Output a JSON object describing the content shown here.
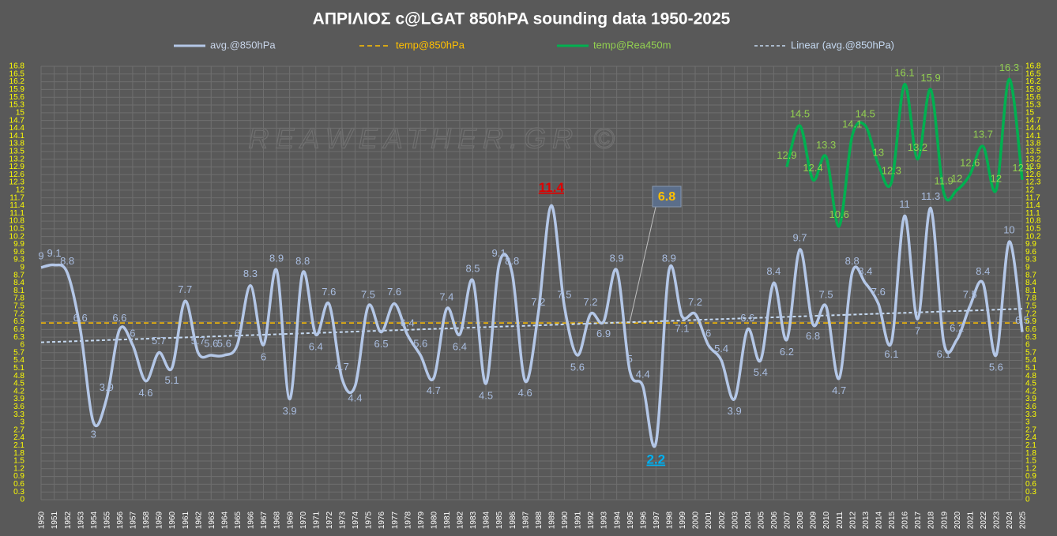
{
  "chart_data": {
    "type": "line",
    "title": "ΑΠΡΙΛΙΟΣ  c@LGAT  850hPA  sounding data   1950-2025",
    "watermark": "REAWEATHER.GR ©",
    "categories": [
      "1950",
      "1951",
      "1952",
      "1953",
      "1954",
      "1955",
      "1956",
      "1957",
      "1958",
      "1959",
      "1960",
      "1961",
      "1962",
      "1963",
      "1964",
      "1965",
      "1966",
      "1967",
      "1968",
      "1969",
      "1970",
      "1971",
      "1972",
      "1973",
      "1974",
      "1975",
      "1976",
      "1977",
      "1978",
      "1979",
      "1980",
      "1981",
      "1982",
      "1983",
      "1984",
      "1985",
      "1986",
      "1987",
      "1988",
      "1989",
      "1990",
      "1991",
      "1992",
      "1993",
      "1994",
      "1995",
      "1996",
      "1997",
      "1998",
      "1999",
      "2000",
      "2001",
      "2002",
      "2003",
      "2004",
      "2005",
      "2006",
      "2007",
      "2008",
      "2009",
      "2010",
      "2011",
      "2012",
      "2013",
      "2014",
      "2015",
      "2016",
      "2017",
      "2018",
      "2019",
      "2020",
      "2021",
      "2022",
      "2023",
      "2024",
      "2025"
    ],
    "series": [
      {
        "name": "avg.@850hPa",
        "color": "#b4c7e7",
        "label_color": "#a9bde0",
        "values": [
          9,
          9.1,
          8.8,
          6.6,
          3,
          3.9,
          6.6,
          6,
          4.6,
          5.7,
          5.1,
          7.7,
          5.7,
          5.6,
          5.6,
          6,
          8.3,
          6,
          8.9,
          3.9,
          8.8,
          6.4,
          7.6,
          4.7,
          4.4,
          7.5,
          6.5,
          7.6,
          6.4,
          5.6,
          4.7,
          7.4,
          6.4,
          8.5,
          4.5,
          9.1,
          8.8,
          4.6,
          7.2,
          11.4,
          7.5,
          5.6,
          7.2,
          6.9,
          8.9,
          5,
          4.4,
          2.2,
          8.9,
          7.1,
          7.2,
          6,
          5.4,
          3.9,
          6.6,
          5.4,
          8.4,
          6.2,
          9.7,
          6.8,
          7.5,
          4.7,
          8.8,
          8.4,
          7.6,
          6.1,
          11,
          7,
          11.3,
          6.1,
          6.2,
          7.5,
          8.4,
          5.6,
          10,
          6.5
        ]
      },
      {
        "name": "temp@850hPa",
        "color": "#ffc000",
        "dash": "6,4",
        "value": 6.85
      },
      {
        "name": "temp@Rea450m",
        "color": "#00b050",
        "label_color": "#92d050",
        "values": [
          null,
          null,
          null,
          null,
          null,
          null,
          null,
          null,
          null,
          null,
          null,
          null,
          null,
          null,
          null,
          null,
          null,
          null,
          null,
          null,
          null,
          null,
          null,
          null,
          null,
          null,
          null,
          null,
          null,
          null,
          null,
          null,
          null,
          null,
          null,
          null,
          null,
          null,
          null,
          null,
          null,
          null,
          null,
          null,
          null,
          null,
          null,
          null,
          null,
          null,
          null,
          null,
          null,
          null,
          null,
          null,
          null,
          12.9,
          14.5,
          12.4,
          13.3,
          10.6,
          14.1,
          14.5,
          13,
          12.3,
          16.1,
          13.2,
          15.9,
          11.9,
          12,
          12.6,
          13.7,
          12,
          16.3,
          12.4
        ]
      },
      {
        "name": "Linear (avg.@850hPa)",
        "color": "#c5d9f1",
        "dash": "4,3",
        "x": [
          "1950",
          "2025"
        ],
        "values": [
          6.1,
          7.4
        ]
      }
    ],
    "callout": 6.8,
    "max_color": "#e00000",
    "min_color": "#00b0f0",
    "ylim": [
      0,
      16.8
    ],
    "yticks": [
      0,
      0.3,
      0.6,
      0.9,
      1.2,
      1.5,
      1.8,
      2.1,
      2.4,
      2.7,
      3,
      3.3,
      3.6,
      3.9,
      4.2,
      4.5,
      4.8,
      5.1,
      5.4,
      5.7,
      6,
      6.3,
      6.6,
      6.9,
      7.2,
      7.5,
      7.8,
      8.1,
      8.4,
      8.7,
      9,
      9.3,
      9.6,
      9.9,
      10.2,
      10.5,
      10.8,
      11.1,
      11.4,
      11.7,
      12,
      12.3,
      12.6,
      12.9,
      13.2,
      13.5,
      13.8,
      14.1,
      14.4,
      14.7,
      15,
      15.3,
      15.6,
      15.9,
      16.2,
      16.5,
      16.8
    ],
    "tick_color": "#ffff00",
    "grid": true
  }
}
